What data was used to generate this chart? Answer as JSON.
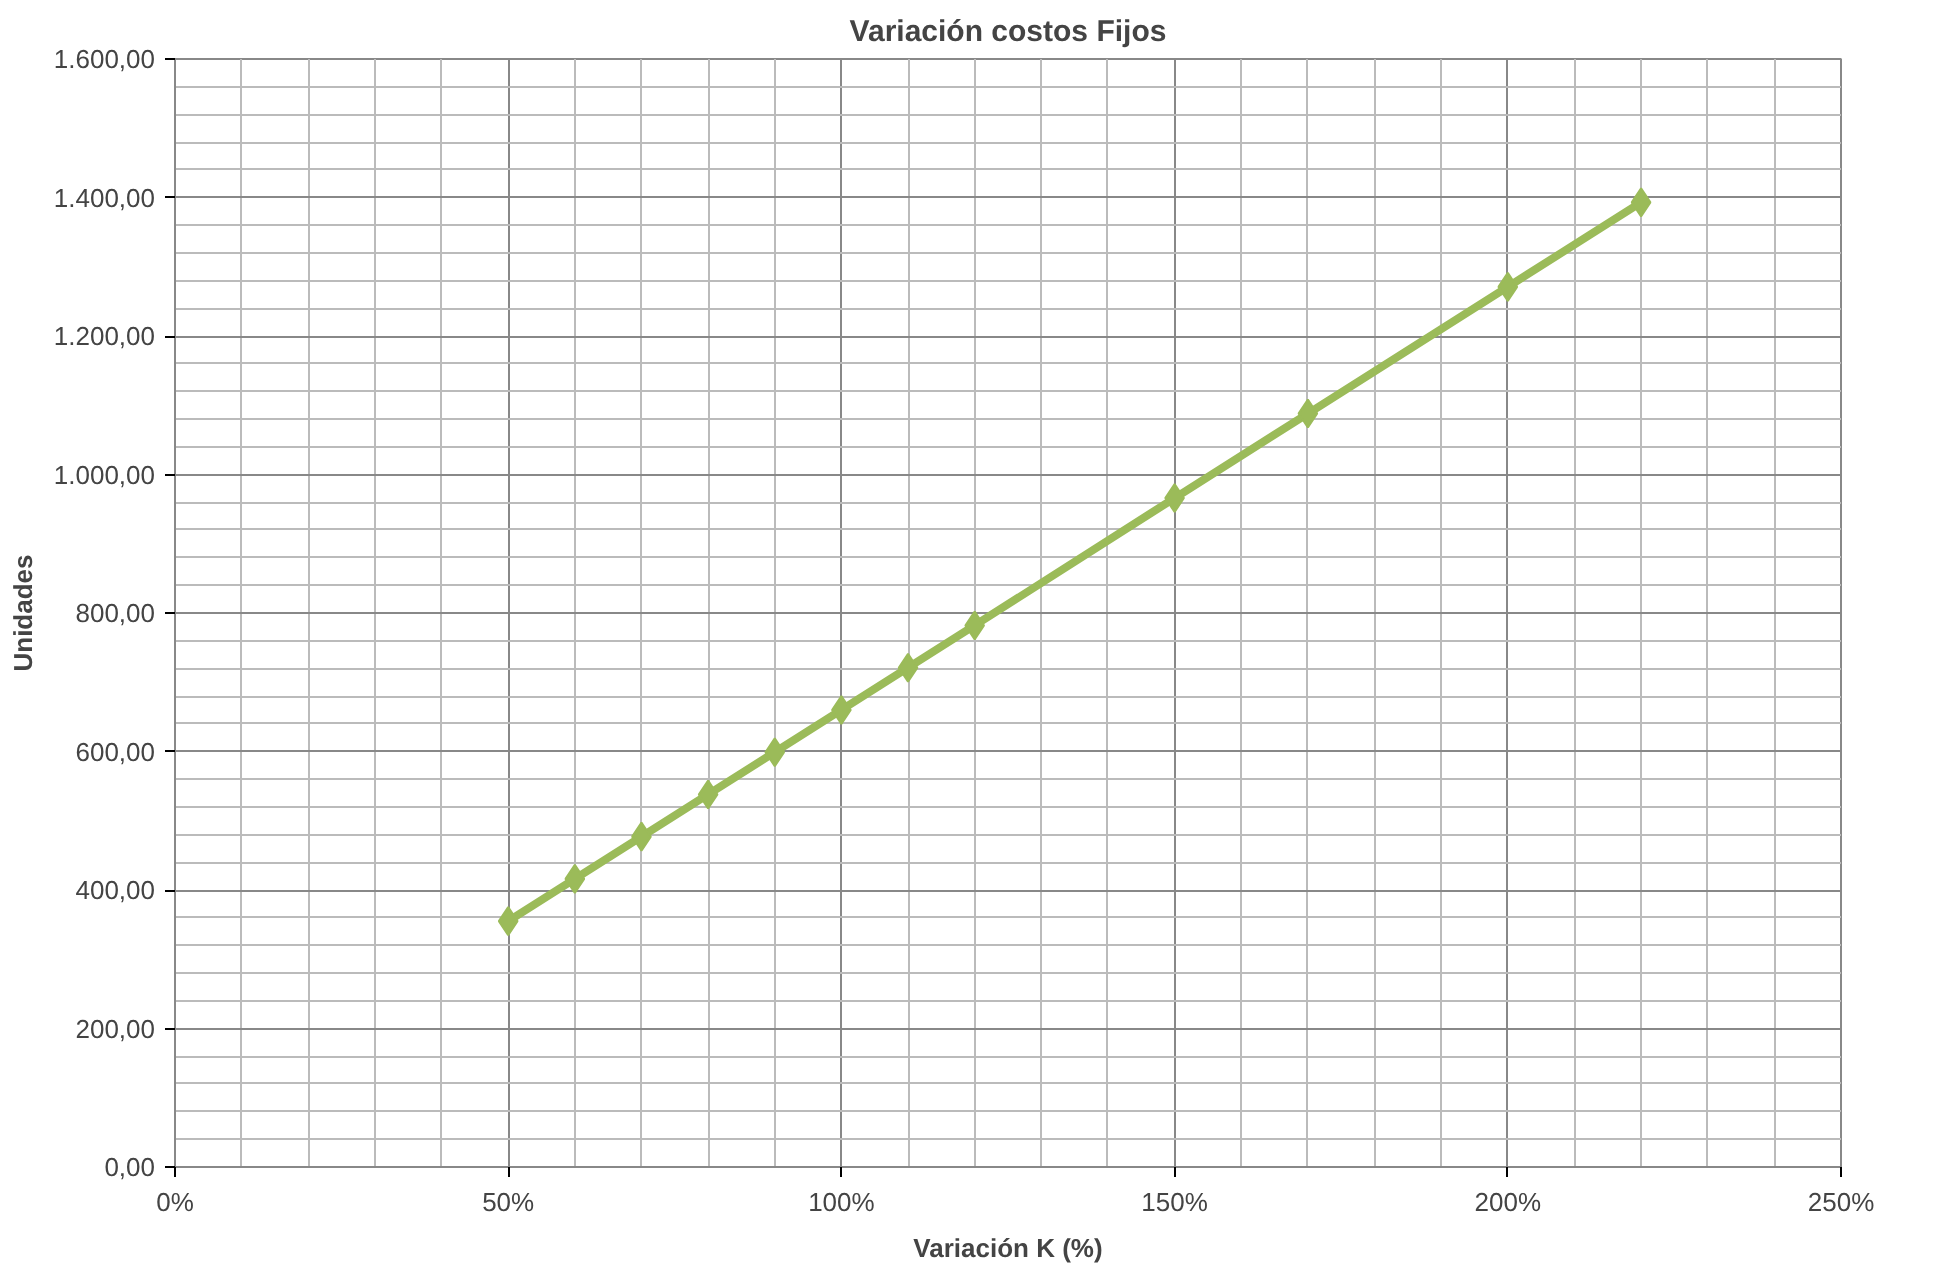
{
  "chart_data": {
    "type": "line",
    "title": "Variación costos Fijos",
    "xlabel": "Variación K (%)",
    "ylabel": "Unidades",
    "x": [
      50,
      60,
      70,
      80,
      90,
      100,
      110,
      120,
      150,
      170,
      200,
      220
    ],
    "series": [
      {
        "color": "#9bbb59",
        "values": [
          355,
          416,
          477,
          538,
          599,
          660,
          721,
          782,
          966,
          1088,
          1271,
          1393
        ]
      }
    ],
    "xlim": [
      0,
      250
    ],
    "xticks": [
      {
        "value": 0,
        "label": "0%"
      },
      {
        "value": 50,
        "label": "50%"
      },
      {
        "value": 100,
        "label": "100%"
      },
      {
        "value": 150,
        "label": "150%"
      },
      {
        "value": 200,
        "label": "200%"
      },
      {
        "value": 250,
        "label": "250%"
      }
    ],
    "ylim": [
      0,
      1600
    ],
    "yticks": [
      {
        "value": 0,
        "label": "0,00"
      },
      {
        "value": 200,
        "label": "200,00"
      },
      {
        "value": 400,
        "label": "400,00"
      },
      {
        "value": 600,
        "label": "600,00"
      },
      {
        "value": 800,
        "label": "800,00"
      },
      {
        "value": 1000,
        "label": "1.000,00"
      },
      {
        "value": 1200,
        "label": "1.200,00"
      },
      {
        "value": 1400,
        "label": "1.400,00"
      },
      {
        "value": 1600,
        "label": "1.600,00"
      }
    ],
    "grid": true,
    "marker": "diamond",
    "line_style": "solid"
  }
}
